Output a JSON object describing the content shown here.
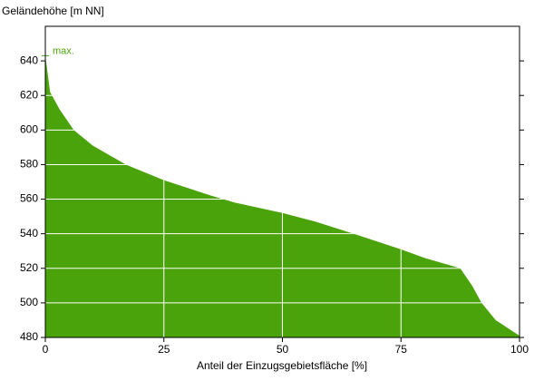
{
  "chart_data": {
    "type": "area",
    "ylabel": "Geländehöhe [m NN]",
    "xlabel": "Anteil der Einzugsgebietsfläche [%]",
    "x": [
      0,
      1,
      3,
      6,
      10,
      17,
      25,
      35,
      40,
      50,
      57,
      65,
      75,
      80,
      87.5,
      90,
      92,
      95,
      100
    ],
    "values": [
      643,
      622,
      612,
      600,
      591,
      580,
      571,
      562,
      558,
      552,
      547,
      540,
      531,
      526,
      520,
      510,
      500,
      490,
      481
    ],
    "color": "#4aa30a",
    "xlim": [
      0,
      100
    ],
    "xticks": [
      0,
      25,
      50,
      75,
      100
    ],
    "ylim": [
      480,
      660
    ],
    "yticks": [
      480,
      500,
      520,
      540,
      560,
      580,
      600,
      620,
      640
    ],
    "grid": true,
    "annotations": [
      {
        "text": "max.",
        "y": 643
      }
    ]
  }
}
